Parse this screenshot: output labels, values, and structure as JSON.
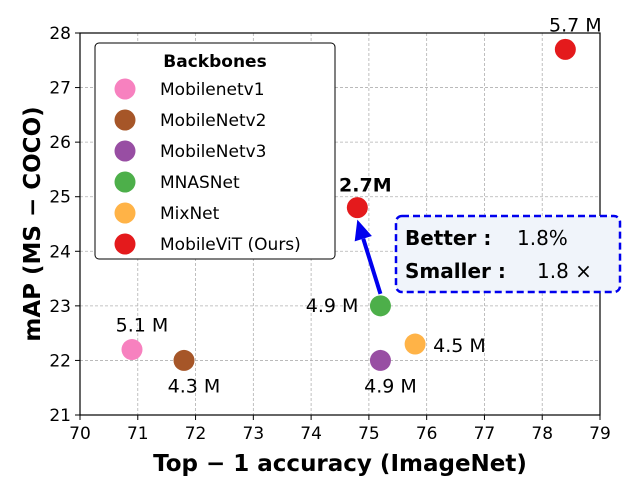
{
  "chart_data": {
    "type": "scatter",
    "title": "",
    "xlabel": "Top − 1 accuracy (ImageNet)",
    "ylabel": "mAP (MS − COCO)",
    "xlim": [
      70,
      79
    ],
    "ylim": [
      21,
      28
    ],
    "xticks": [
      "70",
      "71",
      "72",
      "73",
      "74",
      "75",
      "76",
      "77",
      "78",
      "79"
    ],
    "yticks": [
      "21",
      "22",
      "23",
      "24",
      "25",
      "26",
      "27",
      "28"
    ],
    "grid": true,
    "legend": {
      "title": "Backbones",
      "position": "top-left",
      "entries": [
        "Mobilenetv1",
        "MobileNetv2",
        "MobileNetv3",
        "MNASNet",
        "MixNet",
        "MobileViT (Ours)"
      ]
    },
    "colors": {
      "Mobilenetv1": "#f781bf",
      "MobileNetv2": "#a65628",
      "MobileNetv3": "#984ea3",
      "MNASNet": "#4daf4a",
      "MixNet": "#ffb347",
      "MobileViT (Ours)": "#e41a1c",
      "annotation": "#0000ee",
      "annotation_bg": "#f0f4fa"
    },
    "series": [
      {
        "name": "Mobilenetv1",
        "points": [
          {
            "x": 70.9,
            "y": 22.2,
            "label": "5.1 M"
          }
        ]
      },
      {
        "name": "MobileNetv2",
        "points": [
          {
            "x": 71.8,
            "y": 22.0,
            "label": "4.3 M"
          }
        ]
      },
      {
        "name": "MobileNetv3",
        "points": [
          {
            "x": 75.2,
            "y": 22.0,
            "label": "4.9 M"
          }
        ]
      },
      {
        "name": "MNASNet",
        "points": [
          {
            "x": 75.2,
            "y": 23.0,
            "label": "4.9 M"
          }
        ]
      },
      {
        "name": "MixNet",
        "points": [
          {
            "x": 75.8,
            "y": 22.3,
            "label": "4.5 M"
          }
        ]
      },
      {
        "name": "MobileViT (Ours)",
        "points": [
          {
            "x": 78.4,
            "y": 27.7,
            "label": "5.7 M"
          },
          {
            "x": 74.8,
            "y": 24.8,
            "label": "2.7M",
            "bold": true
          }
        ]
      }
    ],
    "annotation": {
      "better_label": "Better :",
      "better_value": "1.8%",
      "smaller_label": "Smaller :",
      "smaller_value": "1.8 ×"
    }
  }
}
